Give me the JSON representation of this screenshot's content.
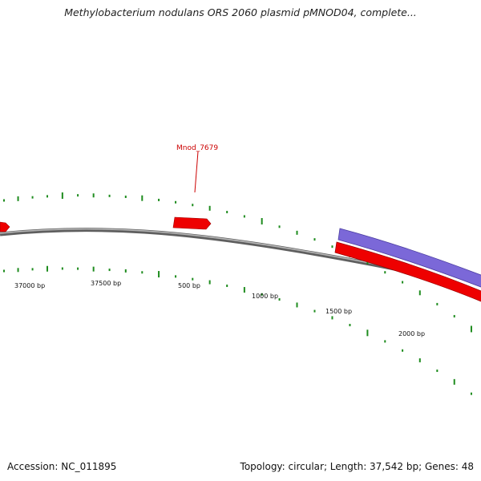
{
  "title": "Methylobacterium nodulans ORS 2060 plasmid pMNOD04, complete...",
  "footer": {
    "accession": "Accession: NC_011895",
    "summary": "Topology: circular; Length: 37,542 bp; Genes: 48"
  },
  "gene_label": "Mnod_7679",
  "position_labels": [
    "37000 bp",
    "37500 bp",
    "500 bp",
    "1000 bp",
    "1500 bp",
    "2000 bp"
  ],
  "colors": {
    "backbone": "#888888",
    "forward_gene": "#ee0000",
    "reverse_gene": "#7b68d8",
    "gc_ticks": "#1e8c1e",
    "label": "#cc0000"
  }
}
